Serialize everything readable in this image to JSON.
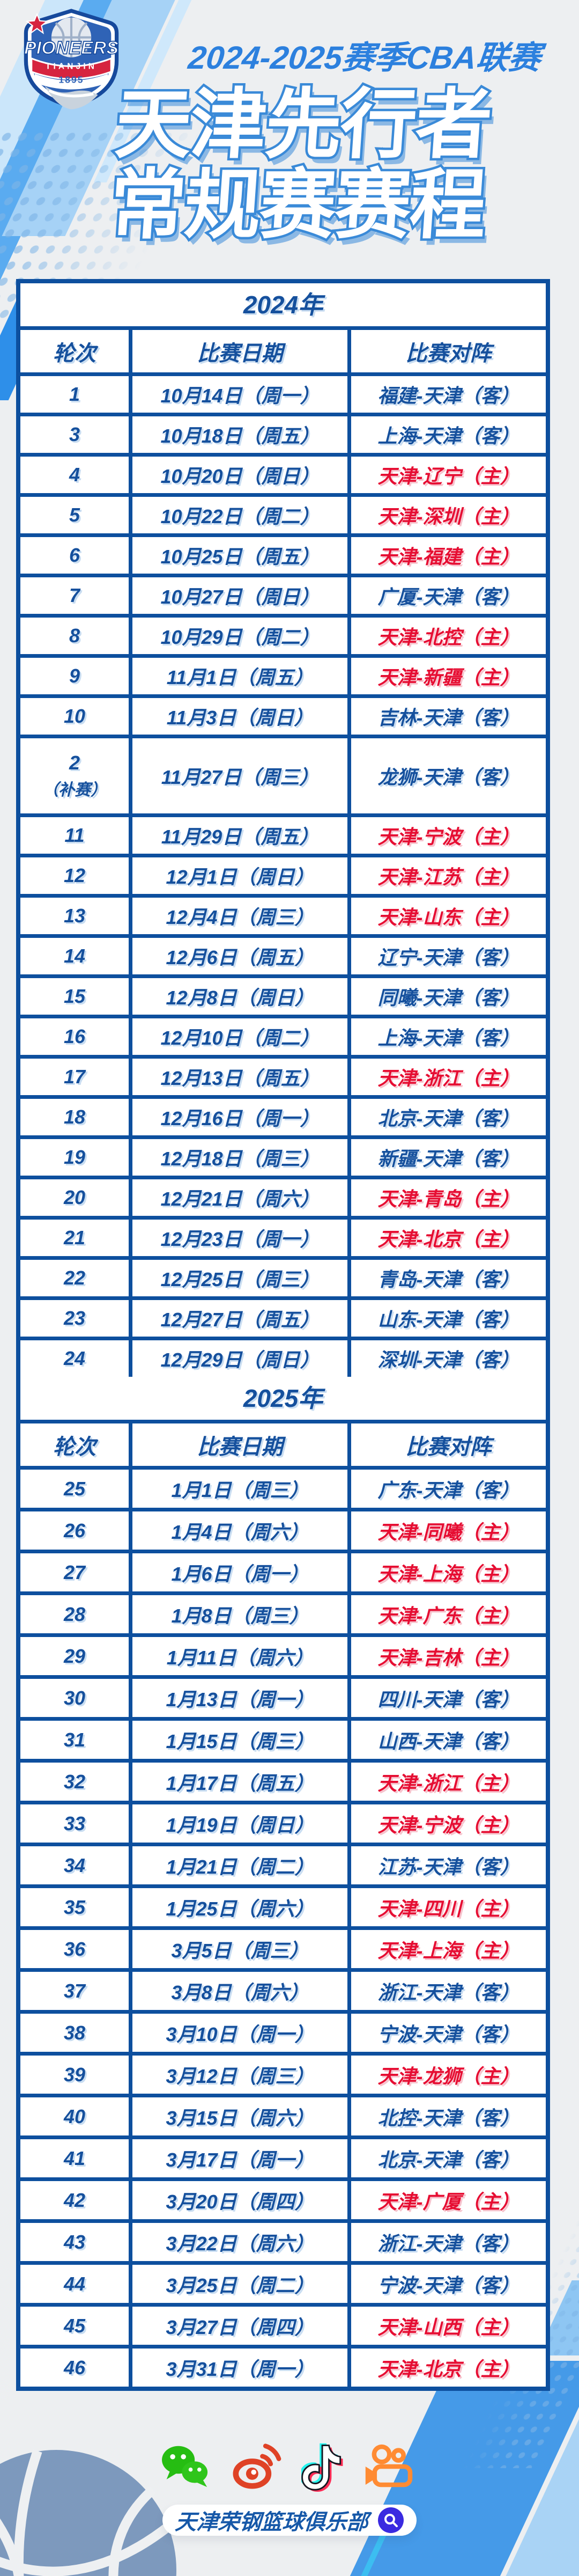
{
  "header": {
    "season": "2024-2025赛季CBA联赛",
    "title_line1": "天津先行者",
    "title_line2": "常规赛赛程"
  },
  "logo": {
    "team": "PIONEERS",
    "city": "TIANJIN",
    "year": "1895"
  },
  "table": {
    "columns": [
      "轮次",
      "比赛日期",
      "比赛对阵"
    ],
    "sections": [
      {
        "year": "2024年",
        "rows": [
          {
            "round": "1",
            "date": "10月14日（周一）",
            "match": "福建-天津（客）",
            "venue": "away"
          },
          {
            "round": "3",
            "date": "10月18日（周五）",
            "match": "上海-天津（客）",
            "venue": "away"
          },
          {
            "round": "4",
            "date": "10月20日（周日）",
            "match": "天津-辽宁（主）",
            "venue": "home"
          },
          {
            "round": "5",
            "date": "10月22日（周二）",
            "match": "天津-深圳（主）",
            "venue": "home"
          },
          {
            "round": "6",
            "date": "10月25日（周五）",
            "match": "天津-福建（主）",
            "venue": "home"
          },
          {
            "round": "7",
            "date": "10月27日（周日）",
            "match": "广厦-天津（客）",
            "venue": "away"
          },
          {
            "round": "8",
            "date": "10月29日（周二）",
            "match": "天津-北控（主）",
            "venue": "home"
          },
          {
            "round": "9",
            "date": "11月1日（周五）",
            "match": "天津-新疆（主）",
            "venue": "home"
          },
          {
            "round": "10",
            "date": "11月3日（周日）",
            "match": "吉林-天津（客）",
            "venue": "away"
          },
          {
            "round": "2",
            "round_note": "（补赛）",
            "date": "11月27日（周三）",
            "match": "龙狮-天津（客）",
            "venue": "away"
          },
          {
            "round": "11",
            "date": "11月29日（周五）",
            "match": "天津-宁波（主）",
            "venue": "home"
          },
          {
            "round": "12",
            "date": "12月1日（周日）",
            "match": "天津-江苏（主）",
            "venue": "home"
          },
          {
            "round": "13",
            "date": "12月4日（周三）",
            "match": "天津-山东（主）",
            "venue": "home"
          },
          {
            "round": "14",
            "date": "12月6日（周五）",
            "match": "辽宁-天津（客）",
            "venue": "away"
          },
          {
            "round": "15",
            "date": "12月8日（周日）",
            "match": "同曦-天津（客）",
            "venue": "away"
          },
          {
            "round": "16",
            "date": "12月10日（周二）",
            "match": "上海-天津（客）",
            "venue": "away"
          },
          {
            "round": "17",
            "date": "12月13日（周五）",
            "match": "天津-浙江（主）",
            "venue": "home"
          },
          {
            "round": "18",
            "date": "12月16日（周一）",
            "match": "北京-天津（客）",
            "venue": "away"
          },
          {
            "round": "19",
            "date": "12月18日（周三）",
            "match": "新疆-天津（客）",
            "venue": "away"
          },
          {
            "round": "20",
            "date": "12月21日（周六）",
            "match": "天津-青岛（主）",
            "venue": "home"
          },
          {
            "round": "21",
            "date": "12月23日（周一）",
            "match": "天津-北京（主）",
            "venue": "home"
          },
          {
            "round": "22",
            "date": "12月25日（周三）",
            "match": "青岛-天津（客）",
            "venue": "away"
          },
          {
            "round": "23",
            "date": "12月27日（周五）",
            "match": "山东-天津（客）",
            "venue": "away"
          },
          {
            "round": "24",
            "date": "12月29日（周日）",
            "match": "深圳-天津（客）",
            "venue": "away"
          }
        ]
      },
      {
        "year": "2025年",
        "rows": [
          {
            "round": "25",
            "date": "1月1日（周三）",
            "match": "广东-天津（客）",
            "venue": "away"
          },
          {
            "round": "26",
            "date": "1月4日（周六）",
            "match": "天津-同曦（主）",
            "venue": "home"
          },
          {
            "round": "27",
            "date": "1月6日（周一）",
            "match": "天津-上海（主）",
            "venue": "home"
          },
          {
            "round": "28",
            "date": "1月8日（周三）",
            "match": "天津-广东（主）",
            "venue": "home"
          },
          {
            "round": "29",
            "date": "1月11日（周六）",
            "match": "天津-吉林（主）",
            "venue": "home"
          },
          {
            "round": "30",
            "date": "1月13日（周一）",
            "match": "四川-天津（客）",
            "venue": "away"
          },
          {
            "round": "31",
            "date": "1月15日（周三）",
            "match": "山西-天津（客）",
            "venue": "away"
          },
          {
            "round": "32",
            "date": "1月17日（周五）",
            "match": "天津-浙江（主）",
            "venue": "home"
          },
          {
            "round": "33",
            "date": "1月19日（周日）",
            "match": "天津-宁波（主）",
            "venue": "home"
          },
          {
            "round": "34",
            "date": "1月21日（周二）",
            "match": "江苏-天津（客）",
            "venue": "away"
          },
          {
            "round": "35",
            "date": "1月25日（周六）",
            "match": "天津-四川（主）",
            "venue": "home"
          },
          {
            "round": "36",
            "date": "3月5日（周三）",
            "match": "天津-上海（主）",
            "venue": "home"
          },
          {
            "round": "37",
            "date": "3月8日（周六）",
            "match": "浙江-天津（客）",
            "venue": "away"
          },
          {
            "round": "38",
            "date": "3月10日（周一）",
            "match": "宁波-天津（客）",
            "venue": "away"
          },
          {
            "round": "39",
            "date": "3月12日（周三）",
            "match": "天津-龙狮（主）",
            "venue": "home"
          },
          {
            "round": "40",
            "date": "3月15日（周六）",
            "match": "北控-天津（客）",
            "venue": "away"
          },
          {
            "round": "41",
            "date": "3月17日（周一）",
            "match": "北京-天津（客）",
            "venue": "away"
          },
          {
            "round": "42",
            "date": "3月20日（周四）",
            "match": "天津-广厦（主）",
            "venue": "home"
          },
          {
            "round": "43",
            "date": "3月22日（周六）",
            "match": "浙江-天津（客）",
            "venue": "away"
          },
          {
            "round": "44",
            "date": "3月25日（周二）",
            "match": "宁波-天津（客）",
            "venue": "away"
          },
          {
            "round": "45",
            "date": "3月27日（周四）",
            "match": "天津-山西（主）",
            "venue": "home"
          },
          {
            "round": "46",
            "date": "3月31日（周一）",
            "match": "天津-北京（主）",
            "venue": "home"
          }
        ]
      }
    ]
  },
  "footer": {
    "club": "天津荣钢篮球俱乐部",
    "icons": [
      {
        "name": "wechat-icon",
        "color": "#26bd12"
      },
      {
        "name": "weibo-icon",
        "color": "#df4226"
      },
      {
        "name": "douyin-icon",
        "color": "#161823"
      },
      {
        "name": "kuaishou-icon",
        "color": "#ff8b33"
      }
    ]
  },
  "colors": {
    "brand_blue": "#2c80de",
    "border_blue": "#0d4f9e",
    "away_blue": "#15509d",
    "home_red": "#e60d32",
    "title_stroke": "#3a8ad8",
    "background": "#edeff1"
  }
}
